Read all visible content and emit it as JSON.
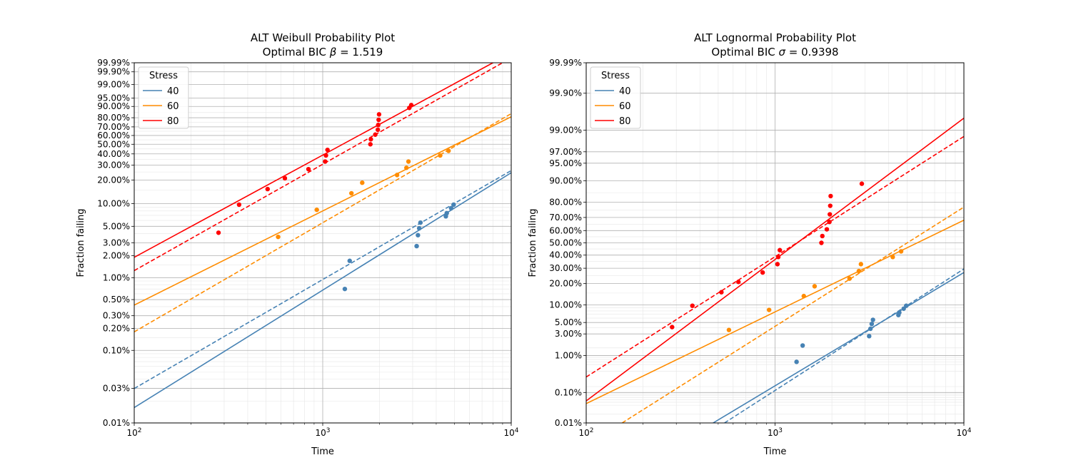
{
  "chart_data": [
    {
      "type": "scatter",
      "title": "ALT Weibull Probability Plot",
      "subtitle_prefix": "Optimal BIC ",
      "subtitle_symbol": "β",
      "subtitle_suffix": " = 1.519",
      "xlabel": "Time",
      "ylabel": "Fraction failing",
      "xscale": "log",
      "yscale": "weibull",
      "xlim": [
        100,
        10000
      ],
      "ylim": [
        0.01,
        99.99
      ],
      "x_tick_labels": [
        "10^2",
        "10^3",
        "10^4"
      ],
      "y_ticks": [
        0.01,
        0.03,
        0.1,
        0.2,
        0.3,
        0.5,
        1,
        2,
        3,
        5,
        10,
        20,
        30,
        40,
        50,
        60,
        70,
        80,
        90,
        95,
        99,
        99.9,
        99.99
      ],
      "y_tick_labels": [
        "0.01%",
        "0.03%",
        "0.10%",
        "0.20%",
        "0.30%",
        "0.50%",
        "1.00%",
        "2.00%",
        "3.00%",
        "5.00%",
        "10.00%",
        "20.00%",
        "30.00%",
        "40.00%",
        "50.00%",
        "60.00%",
        "70.00%",
        "80.00%",
        "90.00%",
        "95.00%",
        "99.00%",
        "99.90%",
        "99.99%"
      ],
      "grid": true,
      "legend": {
        "title": "Stress",
        "placement": "top-left",
        "entries": [
          "40",
          "60",
          "80"
        ]
      },
      "series": [
        {
          "name": "40",
          "color": "#4682b4",
          "points": [
            [
              1310,
              0.7
            ],
            [
              1390,
              1.7
            ],
            [
              3150,
              2.7
            ],
            [
              3200,
              3.8
            ],
            [
              3250,
              4.7
            ],
            [
              3300,
              5.6
            ],
            [
              4500,
              6.8
            ],
            [
              4550,
              7.5
            ],
            [
              4800,
              8.7
            ],
            [
              4950,
              9.7
            ]
          ],
          "fit_solid": [
            [
              100,
              0.0163
            ],
            [
              10000,
              24.5
            ]
          ],
          "fit_dashed": [
            [
              100,
              0.0298
            ],
            [
              10000,
              26.0
            ]
          ]
        },
        {
          "name": "60",
          "color": "#ff8c00",
          "points": [
            [
              580,
              3.6
            ],
            [
              930,
              8.3
            ],
            [
              1420,
              13.6
            ],
            [
              1620,
              18.5
            ],
            [
              2480,
              23.0
            ],
            [
              2780,
              28.0
            ],
            [
              2850,
              33.0
            ],
            [
              4200,
              38.5
            ],
            [
              4650,
              43.0
            ]
          ],
          "fit_solid": [
            [
              100,
              0.42
            ],
            [
              10000,
              81.0
            ]
          ],
          "fit_dashed": [
            [
              100,
              0.18
            ],
            [
              10000,
              84.0
            ]
          ]
        },
        {
          "name": "80",
          "color": "#ff0000",
          "points": [
            [
              280,
              4.1
            ],
            [
              360,
              9.7
            ],
            [
              510,
              15.4
            ],
            [
              630,
              21.0
            ],
            [
              840,
              27.0
            ],
            [
              1030,
              33.0
            ],
            [
              1040,
              38.5
            ],
            [
              1060,
              44.0
            ],
            [
              1790,
              50.0
            ],
            [
              1800,
              55.6
            ],
            [
              1900,
              61.0
            ],
            [
              1960,
              66.7
            ],
            [
              1970,
              72.2
            ],
            [
              1980,
              77.8
            ],
            [
              1990,
              83.3
            ],
            [
              2880,
              88.9
            ],
            [
              2950,
              91.0
            ]
          ],
          "fit_solid": [
            [
              100,
              1.9
            ],
            [
              8000,
              99.99
            ]
          ],
          "fit_dashed": [
            [
              100,
              1.25
            ],
            [
              9000,
              99.99
            ]
          ]
        }
      ]
    },
    {
      "type": "scatter",
      "title": "ALT Lognormal Probability Plot",
      "subtitle_prefix": "Optimal BIC ",
      "subtitle_symbol": "σ",
      "subtitle_suffix": " = 0.9398",
      "xlabel": "Time",
      "ylabel": "Fraction failing",
      "xscale": "log",
      "yscale": "normal",
      "xlim": [
        100,
        10000
      ],
      "ylim": [
        0.01,
        99.99
      ],
      "x_tick_labels": [
        "10^2",
        "10^3",
        "10^4"
      ],
      "y_ticks": [
        0.01,
        0.1,
        1,
        3,
        5,
        10,
        20,
        30,
        40,
        50,
        60,
        70,
        80,
        90,
        95,
        97,
        99,
        99.9,
        99.99
      ],
      "y_tick_labels": [
        "0.01%",
        "0.10%",
        "1.00%",
        "3.00%",
        "5.00%",
        "10.00%",
        "20.00%",
        "30.00%",
        "40.00%",
        "50.00%",
        "60.00%",
        "70.00%",
        "80.00%",
        "90.00%",
        "95.00%",
        "97.00%",
        "99.00%",
        "99.90%",
        "99.99%"
      ],
      "grid": true,
      "legend": {
        "title": "Stress",
        "placement": "top-left",
        "entries": [
          "40",
          "60",
          "80"
        ]
      },
      "series": [
        {
          "name": "40",
          "color": "#4682b4",
          "points": [
            [
              1300,
              0.7
            ],
            [
              1400,
              1.7
            ],
            [
              3150,
              2.7
            ],
            [
              3200,
              3.8
            ],
            [
              3250,
              4.7
            ],
            [
              3300,
              5.6
            ],
            [
              4500,
              6.8
            ],
            [
              4550,
              7.5
            ],
            [
              4800,
              8.7
            ],
            [
              4950,
              9.7
            ]
          ],
          "fit_solid": [
            [
              470,
              0.01
            ],
            [
              10000,
              27.0
            ]
          ],
          "fit_dashed": [
            [
              540,
              0.01
            ],
            [
              10000,
              29.5
            ]
          ]
        },
        {
          "name": "60",
          "color": "#ff8c00",
          "points": [
            [
              570,
              3.6
            ],
            [
              930,
              8.3
            ],
            [
              1420,
              13.6
            ],
            [
              1620,
              18.5
            ],
            [
              2480,
              23.0
            ],
            [
              2780,
              28.0
            ],
            [
              2850,
              33.0
            ],
            [
              4200,
              38.5
            ],
            [
              4650,
              43.0
            ]
          ],
          "fit_solid": [
            [
              100,
              0.045
            ],
            [
              10000,
              68.0
            ]
          ],
          "fit_dashed": [
            [
              155,
              0.01
            ],
            [
              10000,
              77.0
            ]
          ]
        },
        {
          "name": "80",
          "color": "#ff0000",
          "points": [
            [
              285,
              4.1
            ],
            [
              365,
              9.7
            ],
            [
              520,
              15.4
            ],
            [
              640,
              21.0
            ],
            [
              860,
              27.0
            ],
            [
              1030,
              33.0
            ],
            [
              1040,
              38.5
            ],
            [
              1060,
              44.0
            ],
            [
              1760,
              50.0
            ],
            [
              1780,
              55.6
            ],
            [
              1880,
              61.0
            ],
            [
              1940,
              66.7
            ],
            [
              1950,
              72.2
            ],
            [
              1960,
              77.8
            ],
            [
              1970,
              83.3
            ],
            [
              2880,
              88.9
            ]
          ],
          "fit_solid": [
            [
              100,
              0.055
            ],
            [
              10000,
              99.5
            ]
          ],
          "fit_dashed": [
            [
              100,
              0.28
            ],
            [
              10000,
              98.6
            ]
          ]
        }
      ]
    }
  ]
}
